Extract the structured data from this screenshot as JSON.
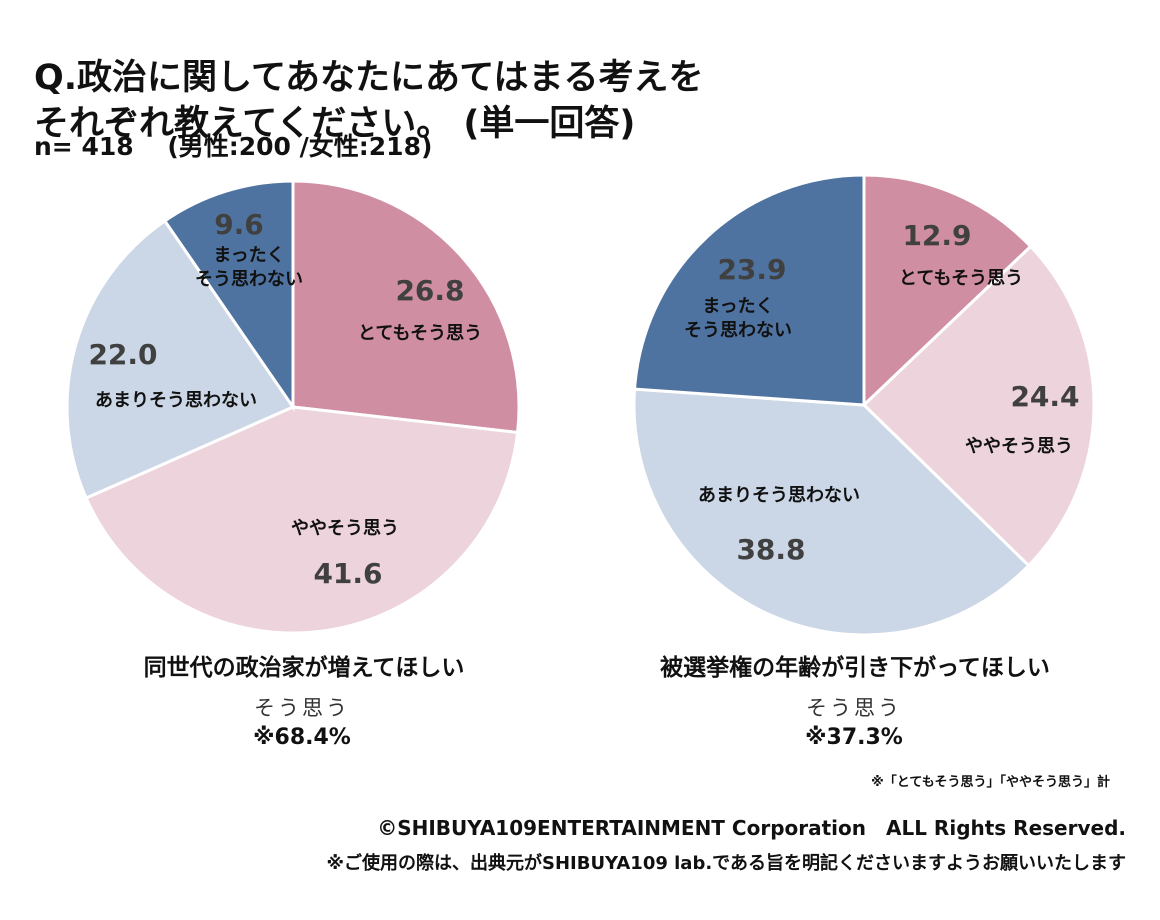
{
  "header": {
    "title_line_1": "Q.政治に関してあなたにあてはまる考えを",
    "title_line_2": "それぞれ教えてください。 (単一回答)",
    "sample_size": "n= 418　 (男性:200 /女性:218)"
  },
  "chart_data": [
    {
      "type": "pie",
      "title": "同世代の政治家が増えてほしい",
      "series": [
        {
          "name": "とてもそう思う",
          "value": 26.8,
          "value_label": "26.8",
          "label_lines": [
            "とてもそう思う"
          ],
          "color": "#D08EA2"
        },
        {
          "name": "ややそう思う",
          "value": 41.6,
          "value_label": "41.6",
          "label_lines": [
            "ややそう思う"
          ],
          "color": "#ECD3DC"
        },
        {
          "name": "あまりそう思わない",
          "value": 22.0,
          "value_label": "22.0",
          "label_lines": [
            "あまりそう思わない"
          ],
          "color": "#CBD7E6"
        },
        {
          "name": "まったくそう思わない",
          "value": 9.6,
          "value_label": "9.6",
          "label_lines": [
            "まったく",
            "そう思わない"
          ],
          "color": "#4F73A1"
        }
      ],
      "summary_label": "そう思う",
      "summary_value": "※68.4%"
    },
    {
      "type": "pie",
      "title": "被選挙権の年齢が引き下がってほしい",
      "series": [
        {
          "name": "とてもそう思う",
          "value": 12.9,
          "value_label": "12.9",
          "label_lines": [
            "とてもそう思う"
          ],
          "color": "#D08EA2"
        },
        {
          "name": "ややそう思う",
          "value": 24.4,
          "value_label": "24.4",
          "label_lines": [
            "ややそう思う"
          ],
          "color": "#ECD3DC"
        },
        {
          "name": "あまりそう思わない",
          "value": 38.8,
          "value_label": "38.8",
          "label_lines": [
            "あまりそう思わない"
          ],
          "color": "#CBD7E6"
        },
        {
          "name": "まったくそう思わない",
          "value": 23.9,
          "value_label": "23.9",
          "label_lines": [
            "まったく",
            "そう思わない"
          ],
          "color": "#4F73A1"
        }
      ],
      "summary_label": "そう思う",
      "summary_value": "※37.3%"
    }
  ],
  "footer": {
    "note": "※「とてもそう思う」「ややそう思う」計",
    "copyright": "©SHIBUYA109ENTERTAINMENT Corporation　ALL Rights Reserved.",
    "usage": "※ご使用の際は、出典元がSHIBUYA109 lab.である旨を明記くださいますようお願いいたします"
  }
}
